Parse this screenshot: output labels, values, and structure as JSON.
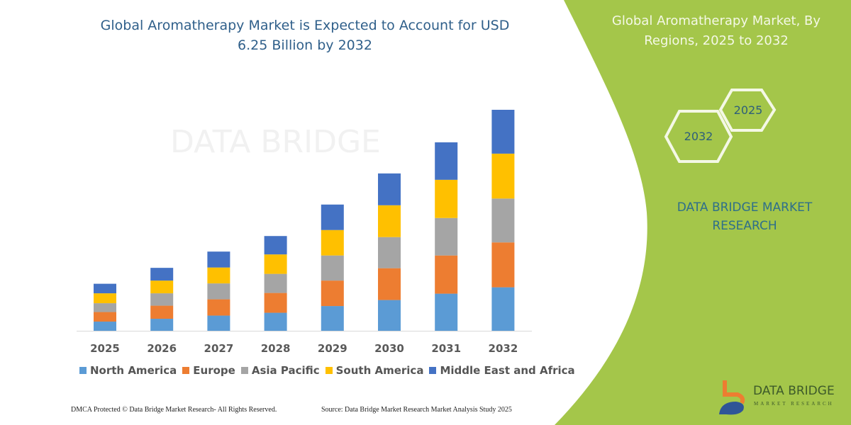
{
  "colors": {
    "panel_green": "#a4c64a",
    "north_america": "#5b9bd5",
    "europe": "#ed7d31",
    "asia_pacific": "#a5a5a5",
    "south_america": "#ffc000",
    "middle_east_africa": "#4472c4"
  },
  "watermark": "DATA BRIDGE",
  "right_panel": {
    "title": "Global Aromatherapy Market, By Regions, 2025 to 2032",
    "hex_start": "2025",
    "hex_end": "2032",
    "brand": "DATA BRIDGE MARKET RESEARCH"
  },
  "logo": {
    "name": "DATA BRIDGE",
    "sub": "MARKET RESEARCH"
  },
  "footer": {
    "copyright": "DMCA Protected © Data Bridge Market Research- All Rights Reserved.",
    "source": "Source: Data Bridge Market Research Market Analysis Study 2025"
  },
  "chart_data": {
    "type": "bar",
    "stacked": true,
    "title": "Global Aromatherapy Market is Expected to Account for USD 6.25 Billion by 2032",
    "categories": [
      "2025",
      "2026",
      "2027",
      "2028",
      "2029",
      "2030",
      "2031",
      "2032"
    ],
    "series": [
      {
        "name": "North America",
        "color": "#5b9bd5",
        "values": [
          0.26,
          0.34,
          0.43,
          0.51,
          0.7,
          0.87,
          1.05,
          1.23
        ]
      },
      {
        "name": "Europe",
        "color": "#ed7d31",
        "values": [
          0.27,
          0.37,
          0.46,
          0.56,
          0.72,
          0.9,
          1.08,
          1.27
        ]
      },
      {
        "name": "Asia Pacific",
        "color": "#a5a5a5",
        "values": [
          0.25,
          0.35,
          0.45,
          0.54,
          0.71,
          0.88,
          1.06,
          1.24
        ]
      },
      {
        "name": "South America",
        "color": "#ffc000",
        "values": [
          0.28,
          0.36,
          0.45,
          0.55,
          0.72,
          0.9,
          1.08,
          1.27
        ]
      },
      {
        "name": "Middle East and Africa",
        "color": "#4472c4",
        "values": [
          0.27,
          0.36,
          0.45,
          0.52,
          0.72,
          0.9,
          1.06,
          1.24
        ]
      }
    ],
    "ylim": [
      0,
      6.25
    ],
    "grid": false,
    "legend_position": "bottom"
  }
}
